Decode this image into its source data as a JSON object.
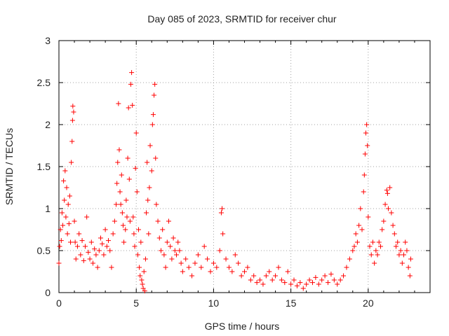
{
  "chart_data": {
    "type": "scatter",
    "title": "Day 085 of 2023, SRMTID for receiver chur",
    "xlabel": "GPS time / hours",
    "ylabel": "SRMTID / TECUs",
    "xlim": [
      0,
      24
    ],
    "ylim": [
      0,
      3
    ],
    "xticks": [
      0,
      5,
      10,
      15,
      20
    ],
    "yticks": [
      0,
      0.5,
      1,
      1.5,
      2,
      2.5,
      3
    ],
    "xtick_labels": [
      "0",
      "5",
      "10",
      "15",
      "20"
    ],
    "ytick_labels": [
      "0",
      "0.5",
      "1",
      "1.5",
      "2",
      "2.5",
      "3"
    ],
    "grid": true,
    "marker": "+",
    "color": "#ff0000",
    "series": [
      {
        "name": "SRMTID",
        "points": [
          [
            0.0,
            0.35
          ],
          [
            0.05,
            0.55
          ],
          [
            0.1,
            0.75
          ],
          [
            0.15,
            0.62
          ],
          [
            0.2,
            0.95
          ],
          [
            0.25,
            0.8
          ],
          [
            0.3,
            1.33
          ],
          [
            0.35,
            1.1
          ],
          [
            0.4,
            1.45
          ],
          [
            0.45,
            0.9
          ],
          [
            0.5,
            1.25
          ],
          [
            0.55,
            0.7
          ],
          [
            0.6,
            1.05
          ],
          [
            0.65,
            0.82
          ],
          [
            0.7,
            1.15
          ],
          [
            0.75,
            0.6
          ],
          [
            0.8,
            1.55
          ],
          [
            0.85,
            1.8
          ],
          [
            0.88,
            2.05
          ],
          [
            0.9,
            2.22
          ],
          [
            0.95,
            2.15
          ],
          [
            1.0,
            0.85
          ],
          [
            1.05,
            0.6
          ],
          [
            1.1,
            0.4
          ],
          [
            1.2,
            0.55
          ],
          [
            1.3,
            0.7
          ],
          [
            1.4,
            0.45
          ],
          [
            1.5,
            0.62
          ],
          [
            1.6,
            0.38
          ],
          [
            1.7,
            0.55
          ],
          [
            1.8,
            0.9
          ],
          [
            1.9,
            0.48
          ],
          [
            2.0,
            0.4
          ],
          [
            2.1,
            0.6
          ],
          [
            2.2,
            0.35
          ],
          [
            2.3,
            0.52
          ],
          [
            2.4,
            0.45
          ],
          [
            2.5,
            0.3
          ],
          [
            2.6,
            0.5
          ],
          [
            2.7,
            0.65
          ],
          [
            2.8,
            0.58
          ],
          [
            2.9,
            0.45
          ],
          [
            3.0,
            0.75
          ],
          [
            3.1,
            0.55
          ],
          [
            3.2,
            0.62
          ],
          [
            3.3,
            0.5
          ],
          [
            3.4,
            0.3
          ],
          [
            3.5,
            0.7
          ],
          [
            3.6,
            0.85
          ],
          [
            3.7,
            1.05
          ],
          [
            3.75,
            1.3
          ],
          [
            3.8,
            1.55
          ],
          [
            3.85,
            2.25
          ],
          [
            3.9,
            1.7
          ],
          [
            3.95,
            1.2
          ],
          [
            4.0,
            1.05
          ],
          [
            4.05,
            1.4
          ],
          [
            4.1,
            0.95
          ],
          [
            4.15,
            0.8
          ],
          [
            4.2,
            0.6
          ],
          [
            4.3,
            0.75
          ],
          [
            4.35,
            1.1
          ],
          [
            4.4,
            0.9
          ],
          [
            4.45,
            1.6
          ],
          [
            4.5,
            2.2
          ],
          [
            4.55,
            1.35
          ],
          [
            4.6,
            0.85
          ],
          [
            4.65,
            2.48
          ],
          [
            4.7,
            2.62
          ],
          [
            4.75,
            2.23
          ],
          [
            4.8,
            0.9
          ],
          [
            4.85,
            0.7
          ],
          [
            4.9,
            0.55
          ],
          [
            4.95,
            1.48
          ],
          [
            5.0,
            1.9
          ],
          [
            5.05,
            1.2
          ],
          [
            5.1,
            0.45
          ],
          [
            5.15,
            0.75
          ],
          [
            5.2,
            0.3
          ],
          [
            5.25,
            0.2
          ],
          [
            5.3,
            0.6
          ],
          [
            5.35,
            0.15
          ],
          [
            5.4,
            0.1
          ],
          [
            5.45,
            0.05
          ],
          [
            5.5,
            0.25
          ],
          [
            5.55,
            0.02
          ],
          [
            5.6,
            0.4
          ],
          [
            5.65,
            0.95
          ],
          [
            5.7,
            1.55
          ],
          [
            5.75,
            1.1
          ],
          [
            5.8,
            0.7
          ],
          [
            5.85,
            1.25
          ],
          [
            5.9,
            1.75
          ],
          [
            6.0,
            1.45
          ],
          [
            6.05,
            2.0
          ],
          [
            6.1,
            2.12
          ],
          [
            6.15,
            2.35
          ],
          [
            6.2,
            2.48
          ],
          [
            6.25,
            1.6
          ],
          [
            6.3,
            1.05
          ],
          [
            6.4,
            0.85
          ],
          [
            6.5,
            0.65
          ],
          [
            6.6,
            0.5
          ],
          [
            6.7,
            0.75
          ],
          [
            6.8,
            0.45
          ],
          [
            6.9,
            0.3
          ],
          [
            7.0,
            0.6
          ],
          [
            7.1,
            0.85
          ],
          [
            7.2,
            0.55
          ],
          [
            7.3,
            0.4
          ],
          [
            7.4,
            0.65
          ],
          [
            7.5,
            0.5
          ],
          [
            7.6,
            0.45
          ],
          [
            7.7,
            0.6
          ],
          [
            7.8,
            0.5
          ],
          [
            7.9,
            0.35
          ],
          [
            8.0,
            0.25
          ],
          [
            8.2,
            0.4
          ],
          [
            8.4,
            0.3
          ],
          [
            8.6,
            0.2
          ],
          [
            8.8,
            0.35
          ],
          [
            9.0,
            0.45
          ],
          [
            9.2,
            0.3
          ],
          [
            9.4,
            0.55
          ],
          [
            9.6,
            0.4
          ],
          [
            9.8,
            0.25
          ],
          [
            10.0,
            0.35
          ],
          [
            10.2,
            0.3
          ],
          [
            10.4,
            0.5
          ],
          [
            10.5,
            0.95
          ],
          [
            10.55,
            1.0
          ],
          [
            10.6,
            0.7
          ],
          [
            10.8,
            0.4
          ],
          [
            11.0,
            0.3
          ],
          [
            11.2,
            0.25
          ],
          [
            11.4,
            0.45
          ],
          [
            11.6,
            0.35
          ],
          [
            11.8,
            0.2
          ],
          [
            12.0,
            0.25
          ],
          [
            12.2,
            0.3
          ],
          [
            12.4,
            0.15
          ],
          [
            12.6,
            0.2
          ],
          [
            12.8,
            0.12
          ],
          [
            13.0,
            0.15
          ],
          [
            13.2,
            0.1
          ],
          [
            13.4,
            0.2
          ],
          [
            13.6,
            0.25
          ],
          [
            13.8,
            0.15
          ],
          [
            14.0,
            0.2
          ],
          [
            14.2,
            0.3
          ],
          [
            14.4,
            0.15
          ],
          [
            14.6,
            0.12
          ],
          [
            14.8,
            0.25
          ],
          [
            15.0,
            0.1
          ],
          [
            15.2,
            0.15
          ],
          [
            15.4,
            0.08
          ],
          [
            15.6,
            0.12
          ],
          [
            15.8,
            0.05
          ],
          [
            16.0,
            0.1
          ],
          [
            16.2,
            0.15
          ],
          [
            16.4,
            0.12
          ],
          [
            16.6,
            0.18
          ],
          [
            16.8,
            0.1
          ],
          [
            17.0,
            0.15
          ],
          [
            17.2,
            0.2
          ],
          [
            17.4,
            0.12
          ],
          [
            17.6,
            0.22
          ],
          [
            17.8,
            0.15
          ],
          [
            18.0,
            0.1
          ],
          [
            18.2,
            0.15
          ],
          [
            18.4,
            0.2
          ],
          [
            18.6,
            0.3
          ],
          [
            18.8,
            0.4
          ],
          [
            19.0,
            0.5
          ],
          [
            19.1,
            0.55
          ],
          [
            19.2,
            0.7
          ],
          [
            19.3,
            0.6
          ],
          [
            19.4,
            0.8
          ],
          [
            19.5,
            1.0
          ],
          [
            19.6,
            0.75
          ],
          [
            19.7,
            1.2
          ],
          [
            19.75,
            1.4
          ],
          [
            19.8,
            1.65
          ],
          [
            19.85,
            1.9
          ],
          [
            19.9,
            2.0
          ],
          [
            19.95,
            1.75
          ],
          [
            20.0,
            0.9
          ],
          [
            20.1,
            0.55
          ],
          [
            20.2,
            0.45
          ],
          [
            20.3,
            0.6
          ],
          [
            20.4,
            0.35
          ],
          [
            20.5,
            0.5
          ],
          [
            20.6,
            0.45
          ],
          [
            20.7,
            0.6
          ],
          [
            20.8,
            0.55
          ],
          [
            20.9,
            0.75
          ],
          [
            21.0,
            0.85
          ],
          [
            21.1,
            1.05
          ],
          [
            21.2,
            1.22
          ],
          [
            21.25,
            1.18
          ],
          [
            21.3,
            1.0
          ],
          [
            21.4,
            1.25
          ],
          [
            21.5,
            0.95
          ],
          [
            21.6,
            0.8
          ],
          [
            21.7,
            0.7
          ],
          [
            21.8,
            0.55
          ],
          [
            21.9,
            0.6
          ],
          [
            22.0,
            0.45
          ],
          [
            22.1,
            0.5
          ],
          [
            22.2,
            0.35
          ],
          [
            22.3,
            0.45
          ],
          [
            22.4,
            0.6
          ],
          [
            22.5,
            0.5
          ],
          [
            22.6,
            0.3
          ],
          [
            22.7,
            0.2
          ],
          [
            22.75,
            0.4
          ]
        ]
      }
    ]
  }
}
